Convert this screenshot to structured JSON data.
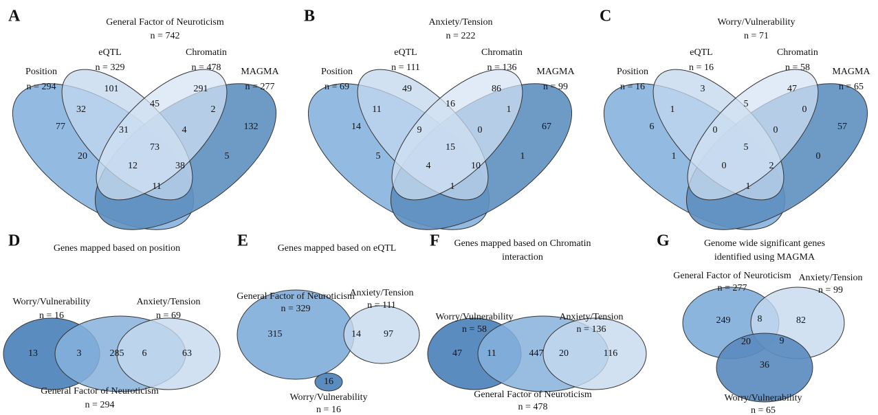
{
  "panels": [
    {
      "letter": "A",
      "title": [
        "General Factor of Neuroticism"
      ],
      "n": "n = 742",
      "sets": [
        {
          "name": "Position",
          "n": "n = 294"
        },
        {
          "name": "eQTL",
          "n": "n = 329"
        },
        {
          "name": "Chromatin",
          "n": "n = 478"
        },
        {
          "name": "MAGMA",
          "n": "n = 277"
        }
      ],
      "regions": [
        77,
        101,
        291,
        132,
        32,
        45,
        2,
        31,
        4,
        20,
        73,
        5,
        12,
        38,
        11
      ]
    },
    {
      "letter": "B",
      "title": [
        "Anxiety/Tension"
      ],
      "n": "n = 222",
      "sets": [
        {
          "name": "Position",
          "n": "n = 69"
        },
        {
          "name": "eQTL",
          "n": "n = 111"
        },
        {
          "name": "Chromatin",
          "n": "n = 136"
        },
        {
          "name": "MAGMA",
          "n": "n = 99"
        }
      ],
      "regions": [
        14,
        49,
        86,
        67,
        11,
        16,
        1,
        9,
        0,
        5,
        15,
        1,
        4,
        10,
        1
      ]
    },
    {
      "letter": "C",
      "title": [
        "Worry/Vulnerability"
      ],
      "n": "n = 71",
      "sets": [
        {
          "name": "Position",
          "n": "n = 16"
        },
        {
          "name": "eQTL",
          "n": "n = 16"
        },
        {
          "name": "Chromatin",
          "n": "n = 58"
        },
        {
          "name": "MAGMA",
          "n": "n = 65"
        }
      ],
      "regions": [
        6,
        3,
        47,
        57,
        1,
        5,
        0,
        0,
        0,
        1,
        5,
        0,
        0,
        2,
        1
      ]
    },
    {
      "letter": "D",
      "title": [
        "Genes mapped based on position"
      ],
      "sets": [
        {
          "name": "Worry/Vulnerability",
          "n": "n = 16"
        },
        {
          "name": "General Factor of Neuroticism",
          "n": "n = 294"
        },
        {
          "name": "Anxiety/Tension",
          "n": "n = 69"
        }
      ],
      "regions": [
        13,
        3,
        285,
        6,
        63
      ]
    },
    {
      "letter": "E",
      "title": [
        "Genes mapped based on eQTL"
      ],
      "sets": [
        {
          "name": "General Factor of Neuroticism",
          "n": "n = 329"
        },
        {
          "name": "Anxiety/Tension",
          "n": "n = 111"
        },
        {
          "name": "Worry/Vulnerability",
          "n": "n = 16"
        }
      ],
      "regions": [
        315,
        14,
        97,
        16
      ]
    },
    {
      "letter": "F",
      "title": [
        "Genes mapped based on Chromatin",
        "interaction"
      ],
      "sets": [
        {
          "name": "Worry/Vulnerability",
          "n": "n = 58"
        },
        {
          "name": "General Factor of Neuroticism",
          "n": "n = 478"
        },
        {
          "name": "Anxiety/Tension",
          "n": "n = 136"
        }
      ],
      "regions": [
        47,
        11,
        447,
        20,
        116
      ]
    },
    {
      "letter": "G",
      "title": [
        "Genome wide significant genes",
        "identified using MAGMA"
      ],
      "sets": [
        {
          "name": "General Factor of Neuroticism",
          "n": "n = 277"
        },
        {
          "name": "Anxiety/Tension",
          "n": "n = 99"
        },
        {
          "name": "Worry/Vulnerability",
          "n": "n = 65"
        }
      ],
      "regions": [
        249,
        8,
        82,
        20,
        9,
        36
      ]
    }
  ]
}
